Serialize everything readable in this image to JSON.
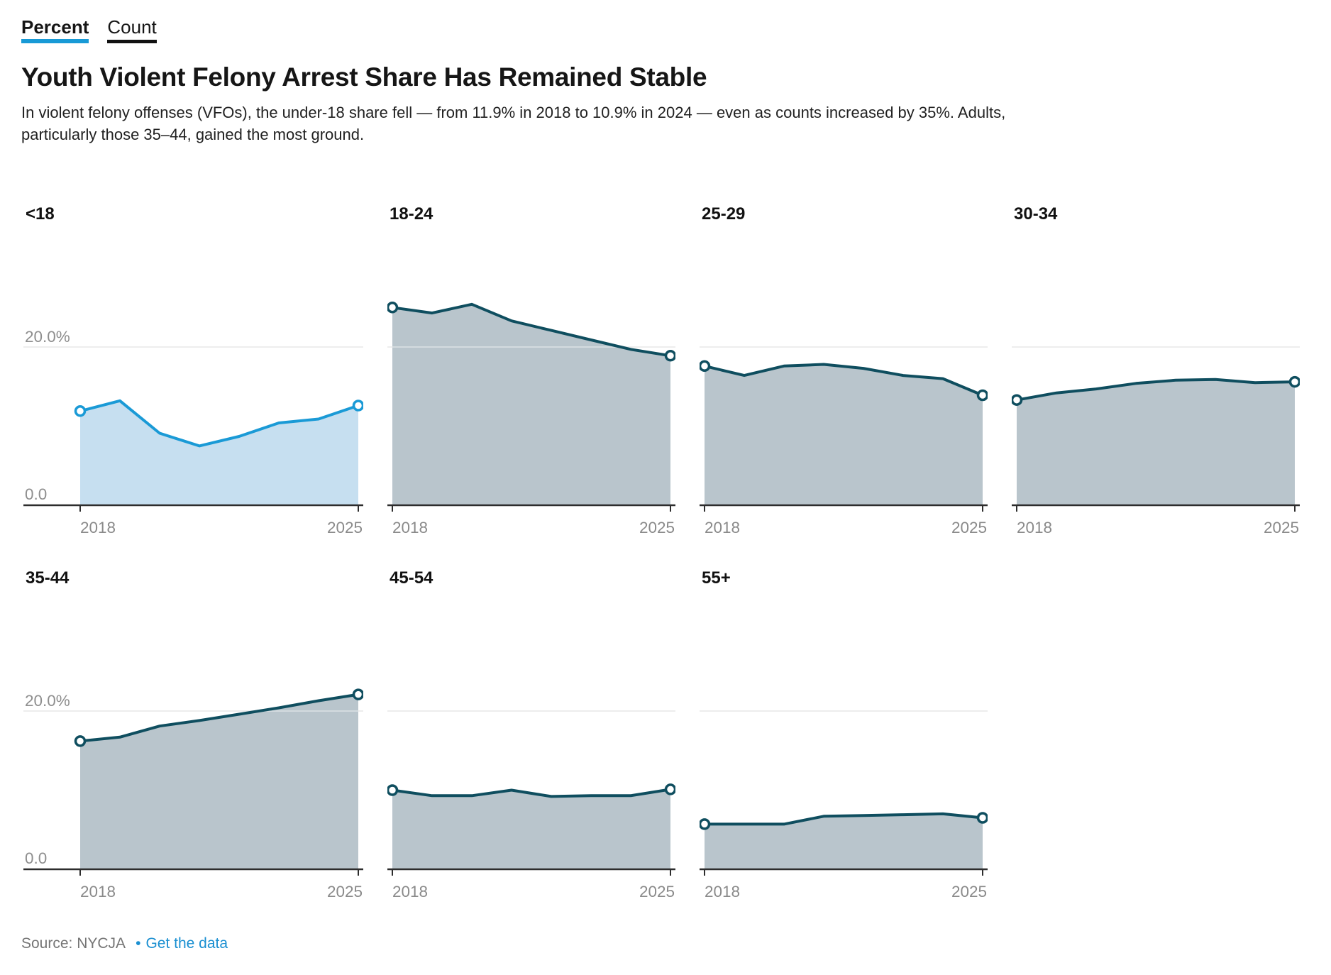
{
  "tabs": [
    {
      "label": "Percent",
      "active": true
    },
    {
      "label": "Count",
      "active": false
    }
  ],
  "title": "Youth Violent Felony Arrest Share Has Remained Stable",
  "description_lines": [
    "In violent felony offenses (VFOs), the under-18 share fell — from 11.9% in 2018 to 10.9% in 2024 — even as counts increased by 35%. Adults,",
    "particularly those 35–44, gained the most ground."
  ],
  "axis": {
    "y_top_label": "20.0%",
    "y_bottom_label": "0.0",
    "x_left": "2018",
    "x_right": "2025"
  },
  "footer": {
    "source_label": "Source:",
    "source": "NYCJA",
    "bullet": "•",
    "link": "Get the data"
  },
  "colors": {
    "accent": "#189ad6",
    "highlight_line": "#1a9ad6",
    "highlight_fill": "#c6dff0",
    "line": "#0f4e5f",
    "fill": "#b9c5cc",
    "grid": "#e2e2e2",
    "grid_over_fill": "rgba(255,255,255,0.38)",
    "axis": "#2d2d2d",
    "axis_text": "#8e8e8e",
    "link": "#1a8fd1"
  },
  "chart_data": {
    "type": "area",
    "title": "Youth Violent Felony Arrest Share Has Remained Stable",
    "unit": "percent share of violent felony arrests",
    "x": [
      2018,
      2019,
      2020,
      2021,
      2022,
      2023,
      2024,
      2025
    ],
    "ylim": [
      0,
      34
    ],
    "gridline_at": 20.0,
    "grid": true,
    "legend_position": "none",
    "series": [
      {
        "name": "<18",
        "highlight": true,
        "values": [
          11.9,
          13.2,
          9.1,
          7.5,
          8.7,
          10.4,
          10.9,
          12.6
        ]
      },
      {
        "name": "18-24",
        "highlight": false,
        "values": [
          25.0,
          24.3,
          25.4,
          23.3,
          22.1,
          20.9,
          19.7,
          18.9
        ]
      },
      {
        "name": "25-29",
        "highlight": false,
        "values": [
          17.6,
          16.4,
          17.6,
          17.8,
          17.3,
          16.4,
          16.0,
          13.9
        ]
      },
      {
        "name": "30-34",
        "highlight": false,
        "values": [
          13.3,
          14.2,
          14.7,
          15.4,
          15.8,
          15.9,
          15.5,
          15.6
        ]
      },
      {
        "name": "35-44",
        "highlight": false,
        "values": [
          16.2,
          16.7,
          18.1,
          18.8,
          19.6,
          20.4,
          21.3,
          22.1
        ]
      },
      {
        "name": "45-54",
        "highlight": false,
        "values": [
          10.0,
          9.3,
          9.3,
          10.0,
          9.2,
          9.3,
          9.3,
          10.1
        ]
      },
      {
        "name": "55+",
        "highlight": false,
        "values": [
          5.7,
          5.7,
          5.7,
          6.7,
          6.8,
          6.9,
          7.0,
          6.5
        ]
      }
    ]
  }
}
